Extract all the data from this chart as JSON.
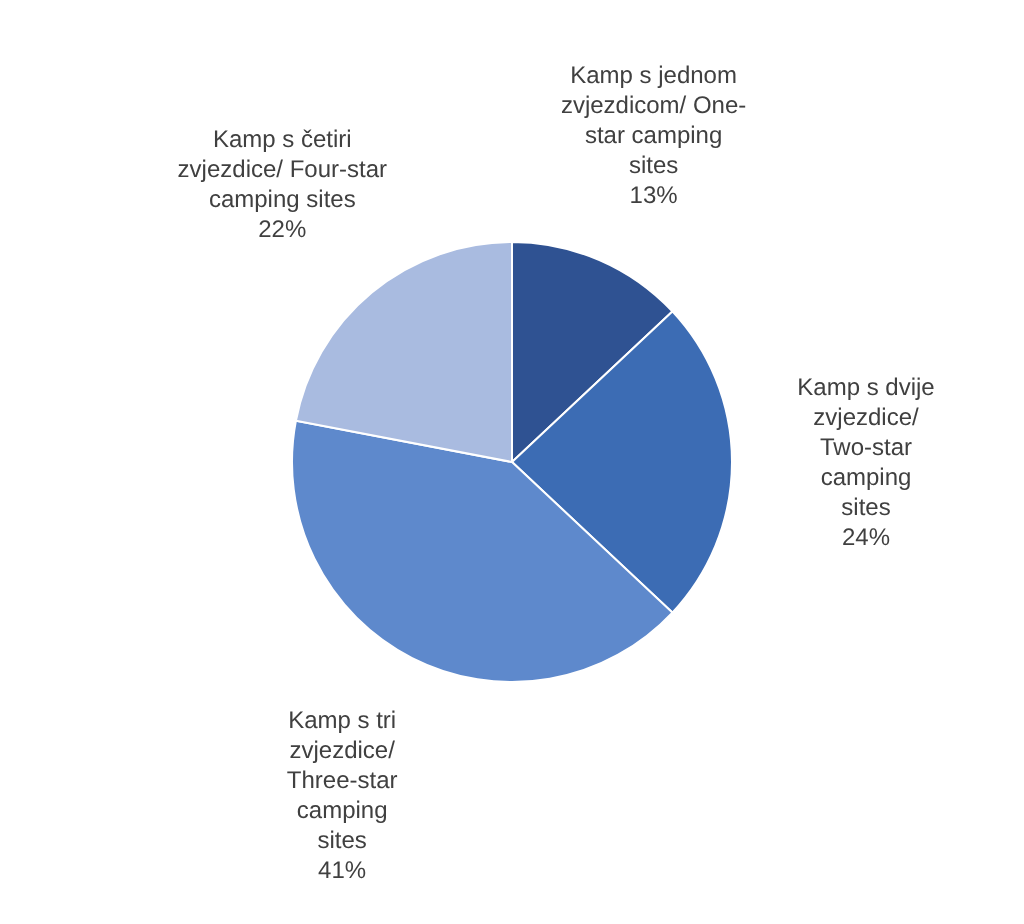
{
  "chart_data": {
    "type": "pie",
    "categories": [
      "Kamp s jednom\nzvjezdicom/ One-\nstar camping\nsites",
      "Kamp s dvije\nzvjezdice/\nTwo-star\ncamping\nsites",
      "Kamp s tri\nzvjezdice/\nThree-star\ncamping\nsites",
      "Kamp s četiri\nzvjezdice/ Four-star\ncamping sites"
    ],
    "values": [
      13,
      24,
      41,
      22
    ],
    "value_labels": [
      "13%",
      "24%",
      "41%",
      "22%"
    ],
    "colors": [
      "#2f5292",
      "#3c6cb4",
      "#5e89cc",
      "#a9bbe0"
    ],
    "legend": false
  }
}
